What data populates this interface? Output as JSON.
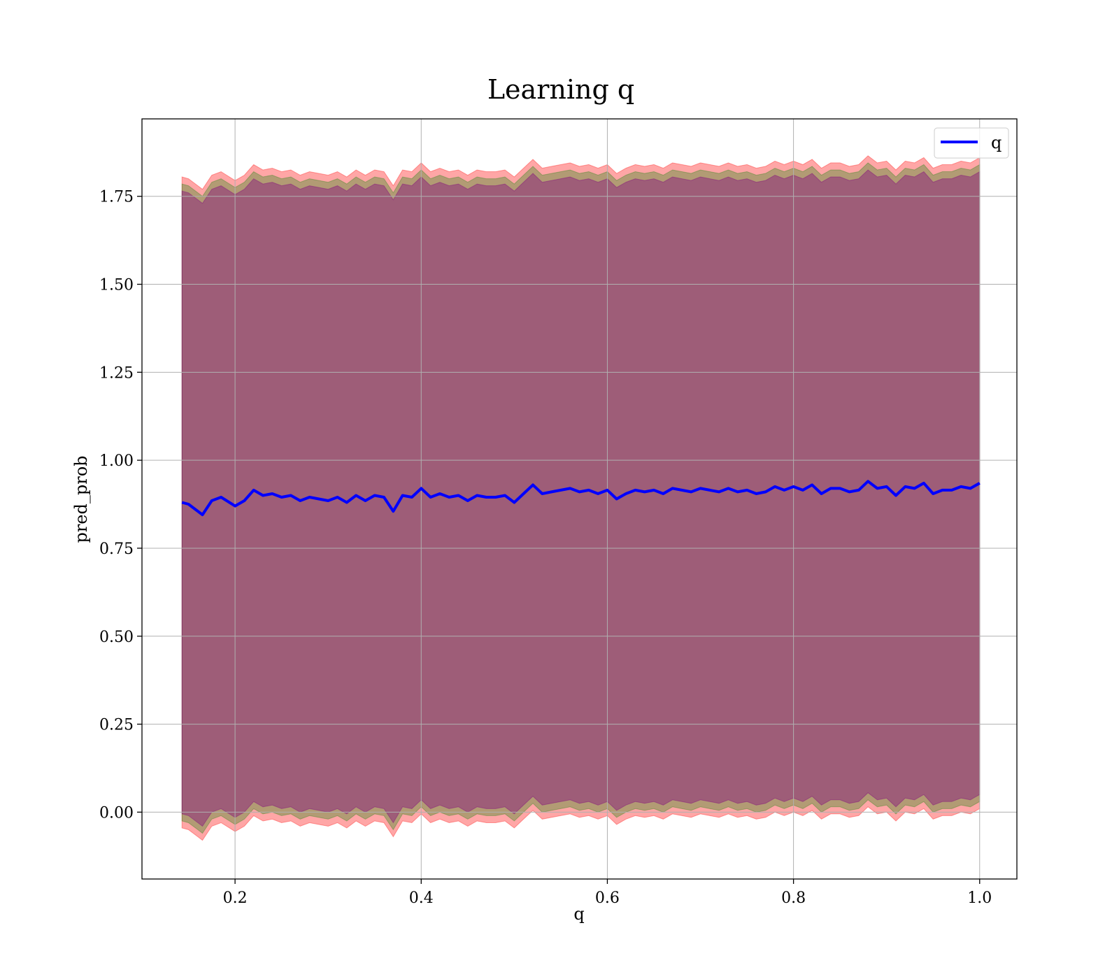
{
  "chart_data": {
    "type": "line",
    "title": "Learning q",
    "xlabel": "q",
    "ylabel": "pred_prob",
    "xlim": [
      0.1,
      1.04
    ],
    "ylim": [
      -0.19,
      1.97
    ],
    "xticks": [
      0.2,
      0.4,
      0.6,
      0.8,
      1.0
    ],
    "xtick_labels": [
      "0.2",
      "0.4",
      "0.6",
      "0.8",
      "1.0"
    ],
    "yticks": [
      0.0,
      0.25,
      0.5,
      0.75,
      1.0,
      1.25,
      1.5,
      1.75
    ],
    "ytick_labels": [
      "0.00",
      "0.25",
      "0.50",
      "0.75",
      "1.00",
      "1.25",
      "1.50",
      "1.75"
    ],
    "grid": true,
    "legend_position": "top-right",
    "series": [
      {
        "name": "q",
        "color": "#0000ff",
        "x": [
          0.143,
          0.15,
          0.16,
          0.165,
          0.175,
          0.185,
          0.2,
          0.21,
          0.22,
          0.23,
          0.24,
          0.25,
          0.26,
          0.27,
          0.28,
          0.29,
          0.3,
          0.31,
          0.32,
          0.33,
          0.34,
          0.35,
          0.36,
          0.37,
          0.38,
          0.39,
          0.4,
          0.41,
          0.42,
          0.43,
          0.44,
          0.45,
          0.46,
          0.47,
          0.48,
          0.49,
          0.5,
          0.51,
          0.52,
          0.53,
          0.54,
          0.55,
          0.56,
          0.57,
          0.58,
          0.59,
          0.6,
          0.61,
          0.62,
          0.63,
          0.64,
          0.65,
          0.66,
          0.67,
          0.68,
          0.69,
          0.7,
          0.71,
          0.72,
          0.73,
          0.74,
          0.75,
          0.76,
          0.77,
          0.78,
          0.79,
          0.8,
          0.81,
          0.82,
          0.83,
          0.84,
          0.85,
          0.86,
          0.87,
          0.88,
          0.89,
          0.9,
          0.91,
          0.92,
          0.93,
          0.94,
          0.95,
          0.96,
          0.97,
          0.98,
          0.99,
          1.0
        ],
        "values": [
          0.88,
          0.875,
          0.855,
          0.845,
          0.885,
          0.895,
          0.87,
          0.885,
          0.915,
          0.9,
          0.905,
          0.895,
          0.9,
          0.885,
          0.895,
          0.89,
          0.885,
          0.895,
          0.88,
          0.9,
          0.885,
          0.9,
          0.895,
          0.855,
          0.9,
          0.895,
          0.92,
          0.895,
          0.905,
          0.895,
          0.9,
          0.885,
          0.9,
          0.895,
          0.895,
          0.9,
          0.88,
          0.905,
          0.93,
          0.905,
          0.91,
          0.915,
          0.92,
          0.91,
          0.915,
          0.905,
          0.915,
          0.89,
          0.905,
          0.915,
          0.91,
          0.915,
          0.905,
          0.92,
          0.915,
          0.91,
          0.92,
          0.915,
          0.91,
          0.92,
          0.91,
          0.915,
          0.905,
          0.91,
          0.925,
          0.915,
          0.925,
          0.915,
          0.93,
          0.905,
          0.92,
          0.92,
          0.91,
          0.915,
          0.94,
          0.92,
          0.925,
          0.9,
          0.925,
          0.92,
          0.935,
          0.905,
          0.915,
          0.915,
          0.925,
          0.92,
          0.935
        ]
      }
    ],
    "bands": [
      {
        "color": "#ff0000",
        "opacity": 0.35,
        "upper_offset": 0.925,
        "lower_offset": -0.925
      },
      {
        "color": "#008000",
        "opacity": 0.3,
        "upper_offset": 0.905,
        "lower_offset": -0.905
      },
      {
        "color": "#800080",
        "opacity": 0.4,
        "upper_offset": 0.885,
        "lower_offset": -0.885
      }
    ]
  }
}
